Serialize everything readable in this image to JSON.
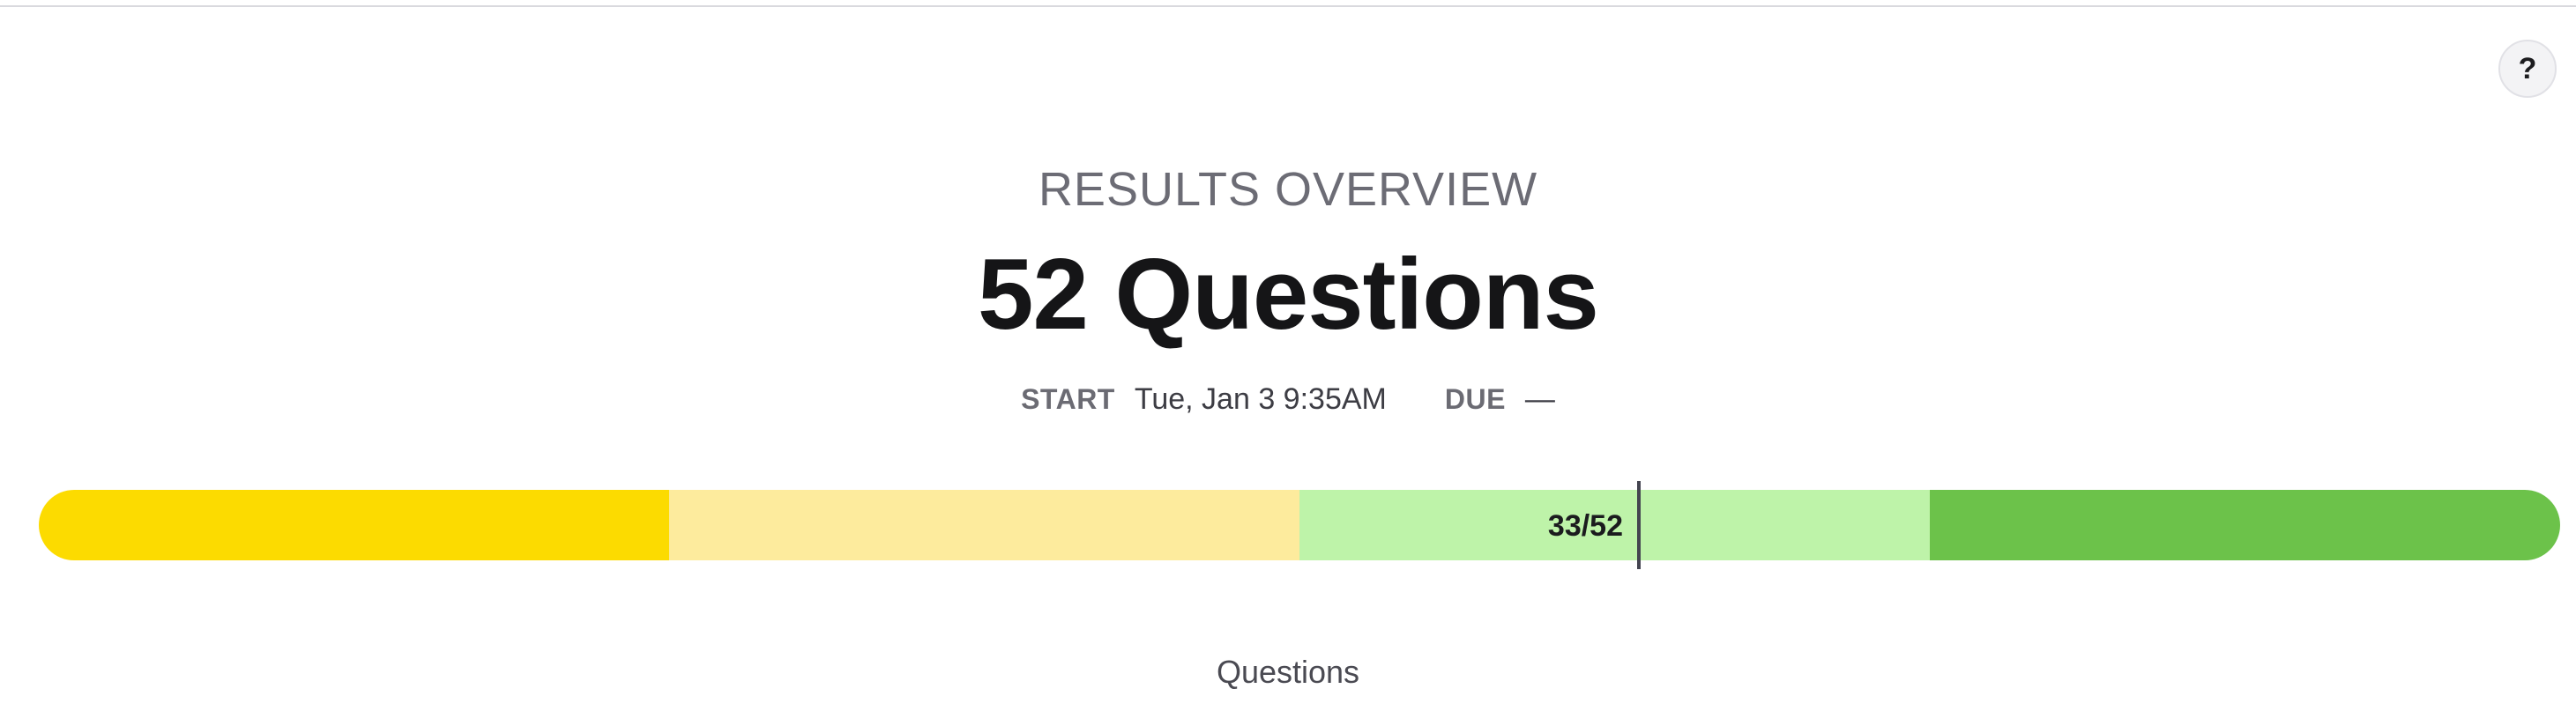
{
  "help_button": {
    "label": "?"
  },
  "overview": {
    "eyebrow": "RESULTS OVERVIEW",
    "headline": "52 Questions"
  },
  "meta": {
    "start_label": "START",
    "start_value": "Tue, Jan 3 9:35AM",
    "due_label": "DUE",
    "due_value": "—"
  },
  "progress": {
    "segments": [
      {
        "color": "#FCDB00",
        "fraction": 0.25
      },
      {
        "color": "#FDEB9D",
        "fraction": 0.25
      },
      {
        "color": "#BEF3A9",
        "fraction": 0.25
      },
      {
        "color": "#6CC24A",
        "fraction": 0.25
      }
    ],
    "current": 33,
    "total": 52,
    "marker_label": "33/52"
  },
  "section": {
    "label": "Questions"
  }
}
